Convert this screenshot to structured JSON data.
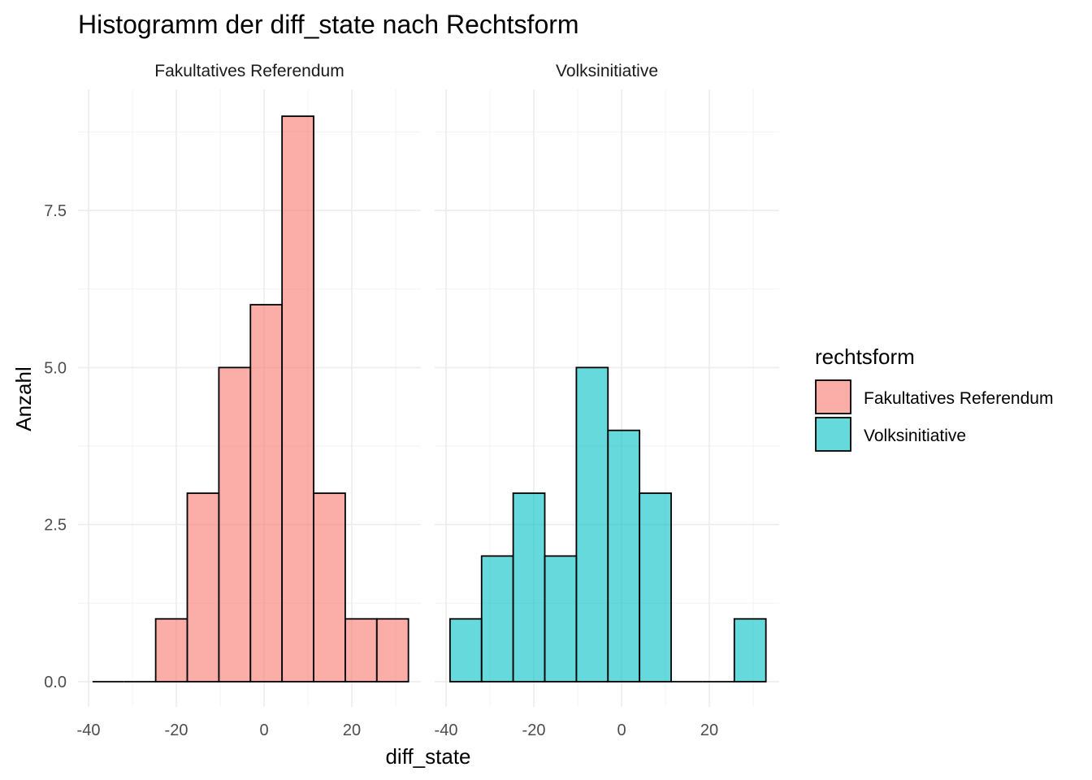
{
  "chart_data": {
    "type": "bar",
    "subtype": "faceted-histogram",
    "title": "Histogramm der diff_state nach Rechtsform",
    "xlabel": "diff_state",
    "ylabel": "Anzahl",
    "x_ticks": [
      -40,
      -20,
      0,
      20
    ],
    "y_ticks": [
      0.0,
      2.5,
      5.0,
      7.5
    ],
    "y_tick_labels": [
      "0.0",
      "2.5",
      "5.0",
      "7.5"
    ],
    "x_tick_labels": [
      "-40",
      "-20",
      "0",
      "20"
    ],
    "xlim": [
      -40,
      32
    ],
    "ylim": [
      0,
      9
    ],
    "bin_width": 7.2,
    "bin_starts": [
      -39.1,
      -31.9,
      -24.7,
      -17.5,
      -10.3,
      -3.1,
      4.1,
      11.3,
      18.5,
      25.7
    ],
    "legend": {
      "title": "rechtsform",
      "position": "right"
    },
    "grid": true,
    "series": [
      {
        "name": "Fakultatives Referendum",
        "color": "#F8766D",
        "values": [
          0,
          0,
          1,
          3,
          5,
          6,
          9,
          3,
          1,
          1
        ]
      },
      {
        "name": "Volksinitiative",
        "color": "#00BFC4",
        "values": [
          1,
          2,
          3,
          2,
          5,
          4,
          3,
          0,
          0,
          1
        ]
      }
    ]
  }
}
